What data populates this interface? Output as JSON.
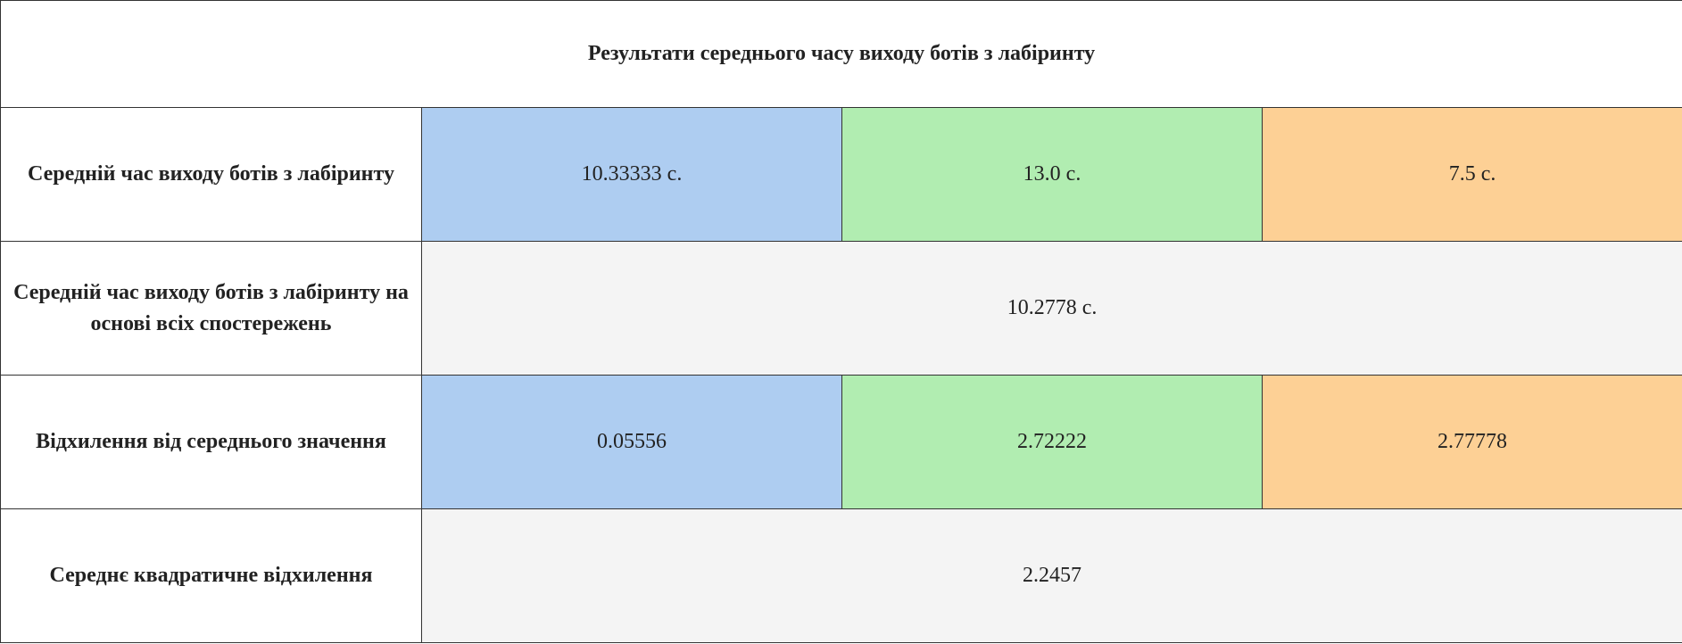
{
  "title": "Результати середнього часу виходу ботів з лабіринту",
  "colors": {
    "blue": "#aecdf1",
    "green": "#b1edb1",
    "orange": "#fdd095",
    "summary": "#f4f4f4"
  },
  "rows": {
    "avg_time": {
      "label": "Середній час виходу ботів з лабіринту",
      "values": [
        "10.33333 с.",
        "13.0 с.",
        "7.5 с."
      ]
    },
    "overall_avg": {
      "label": "Середній час виходу ботів з лабіринту на основі всіх спостережень",
      "value": "10.2778 с."
    },
    "deviation": {
      "label": "Відхилення від середнього значення",
      "values": [
        "0.05556",
        "2.72222",
        "2.77778"
      ]
    },
    "std_dev": {
      "label": "Середнє квадратичне відхилення",
      "value": "2.2457"
    }
  }
}
